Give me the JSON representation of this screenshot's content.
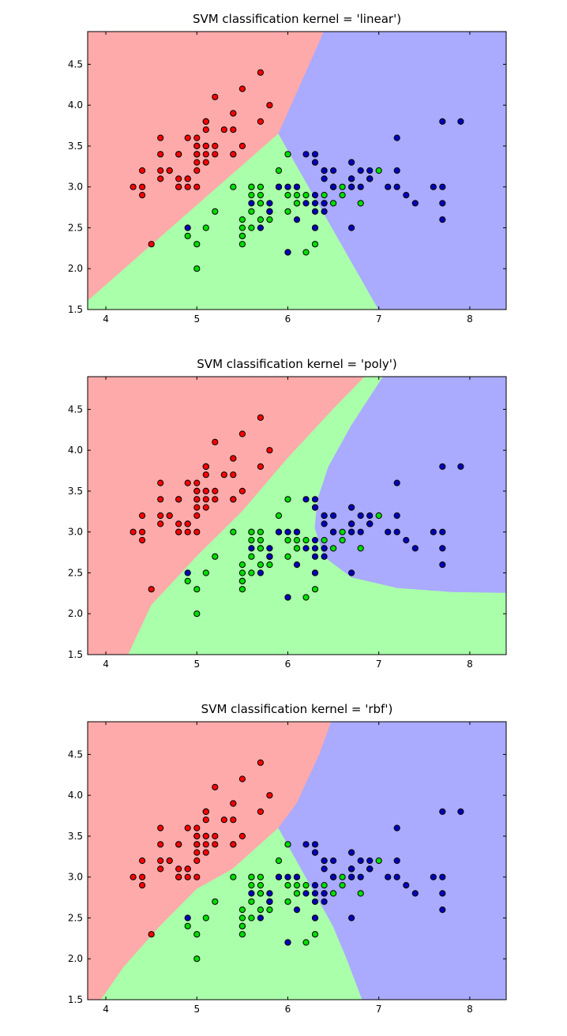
{
  "chart_data": [
    {
      "type": "scatter",
      "title": "SVM classification kernel = 'linear')",
      "xlabel": "",
      "ylabel": "",
      "xlim": [
        3.8,
        8.4
      ],
      "ylim": [
        1.5,
        4.9
      ],
      "xticks": [
        4,
        5,
        6,
        7,
        8
      ],
      "xtick_labels": [
        "4",
        "5",
        "6",
        "7",
        "8"
      ],
      "yticks": [
        1.5,
        2.0,
        2.5,
        3.0,
        3.5,
        4.0,
        4.5
      ],
      "ytick_labels": [
        "1.5",
        "2.0",
        "2.5",
        "3.0",
        "3.5",
        "4.0",
        "4.5"
      ],
      "grid": false,
      "regions": [
        {
          "color": "#ffaaaa",
          "boundary": [
            [
              3.8,
              1.6
            ],
            [
              5.9,
              3.65
            ],
            [
              6.4,
              4.9
            ],
            [
              3.8,
              4.9
            ]
          ]
        },
        {
          "color": "#aaffaa",
          "boundary": [
            [
              3.8,
              1.5
            ],
            [
              3.8,
              1.6
            ],
            [
              5.9,
              3.65
            ],
            [
              7.0,
              1.5
            ]
          ]
        },
        {
          "color": "#aaaaff",
          "boundary": [
            [
              7.0,
              1.5
            ],
            [
              5.9,
              3.65
            ],
            [
              6.4,
              4.9
            ],
            [
              8.4,
              4.9
            ],
            [
              8.4,
              1.5
            ]
          ]
        }
      ]
    },
    {
      "type": "scatter",
      "title": "SVM classification kernel = 'poly')",
      "xlabel": "",
      "ylabel": "",
      "xlim": [
        3.8,
        8.4
      ],
      "ylim": [
        1.5,
        4.9
      ],
      "xticks": [
        4,
        5,
        6,
        7,
        8
      ],
      "xtick_labels": [
        "4",
        "5",
        "6",
        "7",
        "8"
      ],
      "yticks": [
        1.5,
        2.0,
        2.5,
        3.0,
        3.5,
        4.0,
        4.5
      ],
      "ytick_labels": [
        "1.5",
        "2.0",
        "2.5",
        "3.0",
        "3.5",
        "4.0",
        "4.5"
      ],
      "grid": false,
      "regions": [
        {
          "color": "#ffaaaa",
          "boundary": [
            [
              4.25,
              1.5
            ],
            [
              4.5,
              2.1
            ],
            [
              5.0,
              2.7
            ],
            [
              5.5,
              3.25
            ],
            [
              6.0,
              3.9
            ],
            [
              6.5,
              4.5
            ],
            [
              6.85,
              4.9
            ],
            [
              3.8,
              4.9
            ],
            [
              3.8,
              1.5
            ]
          ]
        },
        {
          "color": "#aaffaa",
          "boundary": [
            [
              4.25,
              1.5
            ],
            [
              4.5,
              2.1
            ],
            [
              5.0,
              2.7
            ],
            [
              5.5,
              3.25
            ],
            [
              6.0,
              3.9
            ],
            [
              6.5,
              4.5
            ],
            [
              6.85,
              4.9
            ],
            [
              7.05,
              4.9
            ],
            [
              6.7,
              4.3
            ],
            [
              6.45,
              3.8
            ],
            [
              6.33,
              3.4
            ],
            [
              6.3,
              3.05
            ],
            [
              6.4,
              2.7
            ],
            [
              6.7,
              2.45
            ],
            [
              7.2,
              2.32
            ],
            [
              7.8,
              2.27
            ],
            [
              8.4,
              2.26
            ],
            [
              8.4,
              1.5
            ]
          ]
        },
        {
          "color": "#aaaaff",
          "boundary": [
            [
              7.05,
              4.9
            ],
            [
              6.7,
              4.3
            ],
            [
              6.45,
              3.8
            ],
            [
              6.33,
              3.4
            ],
            [
              6.3,
              3.05
            ],
            [
              6.4,
              2.7
            ],
            [
              6.7,
              2.45
            ],
            [
              7.2,
              2.32
            ],
            [
              7.8,
              2.27
            ],
            [
              8.4,
              2.26
            ],
            [
              8.4,
              4.9
            ]
          ]
        }
      ]
    },
    {
      "type": "scatter",
      "title": "SVM classification kernel = 'rbf')",
      "xlabel": "",
      "ylabel": "",
      "xlim": [
        3.8,
        8.4
      ],
      "ylim": [
        1.5,
        4.9
      ],
      "xticks": [
        4,
        5,
        6,
        7,
        8
      ],
      "xtick_labels": [
        "4",
        "5",
        "6",
        "7",
        "8"
      ],
      "yticks": [
        1.5,
        2.0,
        2.5,
        3.0,
        3.5,
        4.0,
        4.5
      ],
      "ytick_labels": [
        "1.5",
        "2.0",
        "2.5",
        "3.0",
        "3.5",
        "4.0",
        "4.5"
      ],
      "grid": false,
      "regions": [
        {
          "color": "#ffaaaa",
          "boundary": [
            [
              3.95,
              1.5
            ],
            [
              4.2,
              1.9
            ],
            [
              4.6,
              2.4
            ],
            [
              5.0,
              2.85
            ],
            [
              5.4,
              3.1
            ],
            [
              5.9,
              3.6
            ],
            [
              6.1,
              3.9
            ],
            [
              6.35,
              4.5
            ],
            [
              6.48,
              4.9
            ],
            [
              3.8,
              4.9
            ],
            [
              3.8,
              1.5
            ]
          ]
        },
        {
          "color": "#aaffaa",
          "boundary": [
            [
              3.95,
              1.5
            ],
            [
              4.2,
              1.9
            ],
            [
              4.6,
              2.4
            ],
            [
              5.0,
              2.85
            ],
            [
              5.4,
              3.1
            ],
            [
              5.9,
              3.6
            ],
            [
              6.1,
              3.2
            ],
            [
              6.3,
              2.8
            ],
            [
              6.5,
              2.4
            ],
            [
              6.65,
              2.0
            ],
            [
              6.82,
              1.5
            ]
          ]
        },
        {
          "color": "#aaaaff",
          "boundary": [
            [
              6.82,
              1.5
            ],
            [
              6.65,
              2.0
            ],
            [
              6.5,
              2.4
            ],
            [
              6.3,
              2.8
            ],
            [
              6.1,
              3.2
            ],
            [
              5.9,
              3.6
            ],
            [
              6.1,
              3.9
            ],
            [
              6.35,
              4.5
            ],
            [
              6.48,
              4.9
            ],
            [
              8.4,
              4.9
            ],
            [
              8.4,
              1.5
            ]
          ]
        }
      ]
    }
  ],
  "classes": [
    {
      "color": "#ff0000",
      "points": [
        [
          5.1,
          3.5
        ],
        [
          4.9,
          3.0
        ],
        [
          4.7,
          3.2
        ],
        [
          4.6,
          3.1
        ],
        [
          5.0,
          3.6
        ],
        [
          5.4,
          3.9
        ],
        [
          4.6,
          3.4
        ],
        [
          5.0,
          3.4
        ],
        [
          4.4,
          2.9
        ],
        [
          4.9,
          3.1
        ],
        [
          5.4,
          3.7
        ],
        [
          4.8,
          3.4
        ],
        [
          4.8,
          3.0
        ],
        [
          4.3,
          3.0
        ],
        [
          5.8,
          4.0
        ],
        [
          5.7,
          4.4
        ],
        [
          5.4,
          3.9
        ],
        [
          5.1,
          3.5
        ],
        [
          5.7,
          3.8
        ],
        [
          5.1,
          3.8
        ],
        [
          5.4,
          3.4
        ],
        [
          5.1,
          3.7
        ],
        [
          4.6,
          3.6
        ],
        [
          5.1,
          3.3
        ],
        [
          4.8,
          3.4
        ],
        [
          5.0,
          3.0
        ],
        [
          5.0,
          3.4
        ],
        [
          5.2,
          3.5
        ],
        [
          5.2,
          3.4
        ],
        [
          4.7,
          3.2
        ],
        [
          4.8,
          3.1
        ],
        [
          5.4,
          3.4
        ],
        [
          5.2,
          4.1
        ],
        [
          5.5,
          4.2
        ],
        [
          4.9,
          3.1
        ],
        [
          5.0,
          3.2
        ],
        [
          5.5,
          3.5
        ],
        [
          4.9,
          3.6
        ],
        [
          4.4,
          3.0
        ],
        [
          5.1,
          3.4
        ],
        [
          5.0,
          3.5
        ],
        [
          4.5,
          2.3
        ],
        [
          4.4,
          3.2
        ],
        [
          5.0,
          3.5
        ],
        [
          5.1,
          3.8
        ],
        [
          4.8,
          3.0
        ],
        [
          5.1,
          3.8
        ],
        [
          4.6,
          3.2
        ],
        [
          5.3,
          3.7
        ],
        [
          5.0,
          3.3
        ]
      ]
    },
    {
      "color": "#00dd00",
      "points": [
        [
          7.0,
          3.2
        ],
        [
          6.4,
          3.2
        ],
        [
          6.9,
          3.1
        ],
        [
          5.5,
          2.3
        ],
        [
          6.5,
          2.8
        ],
        [
          5.7,
          2.8
        ],
        [
          6.3,
          3.3
        ],
        [
          4.9,
          2.4
        ],
        [
          6.6,
          2.9
        ],
        [
          5.2,
          2.7
        ],
        [
          5.0,
          2.0
        ],
        [
          5.9,
          3.0
        ],
        [
          6.0,
          2.2
        ],
        [
          6.1,
          2.9
        ],
        [
          5.6,
          2.9
        ],
        [
          6.7,
          3.1
        ],
        [
          5.6,
          3.0
        ],
        [
          5.8,
          2.7
        ],
        [
          6.2,
          2.2
        ],
        [
          5.6,
          2.5
        ],
        [
          5.9,
          3.2
        ],
        [
          6.1,
          2.8
        ],
        [
          6.3,
          2.5
        ],
        [
          6.1,
          2.8
        ],
        [
          6.4,
          2.9
        ],
        [
          6.6,
          3.0
        ],
        [
          6.8,
          2.8
        ],
        [
          6.7,
          3.0
        ],
        [
          6.0,
          2.9
        ],
        [
          5.7,
          2.6
        ],
        [
          5.5,
          2.4
        ],
        [
          5.5,
          2.4
        ],
        [
          5.8,
          2.7
        ],
        [
          6.0,
          2.7
        ],
        [
          5.4,
          3.0
        ],
        [
          6.0,
          3.4
        ],
        [
          6.7,
          3.1
        ],
        [
          6.3,
          2.3
        ],
        [
          5.6,
          3.0
        ],
        [
          5.5,
          2.5
        ],
        [
          5.5,
          2.6
        ],
        [
          6.1,
          3.0
        ],
        [
          5.8,
          2.6
        ],
        [
          5.0,
          2.3
        ],
        [
          5.6,
          2.7
        ],
        [
          5.7,
          3.0
        ],
        [
          5.7,
          2.9
        ],
        [
          6.2,
          2.9
        ],
        [
          5.1,
          2.5
        ],
        [
          5.7,
          2.8
        ]
      ]
    },
    {
      "color": "#0000bb",
      "points": [
        [
          6.3,
          3.3
        ],
        [
          5.8,
          2.7
        ],
        [
          7.1,
          3.0
        ],
        [
          6.3,
          2.9
        ],
        [
          6.5,
          3.0
        ],
        [
          7.6,
          3.0
        ],
        [
          4.9,
          2.5
        ],
        [
          7.3,
          2.9
        ],
        [
          6.7,
          2.5
        ],
        [
          7.2,
          3.6
        ],
        [
          6.5,
          3.2
        ],
        [
          6.4,
          2.7
        ],
        [
          6.8,
          3.0
        ],
        [
          5.7,
          2.5
        ],
        [
          5.8,
          2.8
        ],
        [
          6.4,
          3.2
        ],
        [
          6.5,
          3.0
        ],
        [
          7.7,
          3.8
        ],
        [
          7.7,
          2.6
        ],
        [
          6.0,
          2.2
        ],
        [
          6.9,
          3.2
        ],
        [
          5.6,
          2.8
        ],
        [
          7.7,
          2.8
        ],
        [
          6.3,
          2.7
        ],
        [
          6.7,
          3.3
        ],
        [
          7.2,
          3.2
        ],
        [
          6.2,
          2.8
        ],
        [
          6.1,
          3.0
        ],
        [
          6.4,
          2.8
        ],
        [
          7.2,
          3.0
        ],
        [
          7.4,
          2.8
        ],
        [
          7.9,
          3.8
        ],
        [
          6.4,
          2.8
        ],
        [
          6.3,
          2.8
        ],
        [
          6.1,
          2.6
        ],
        [
          7.7,
          3.0
        ],
        [
          6.3,
          3.4
        ],
        [
          6.4,
          3.1
        ],
        [
          6.0,
          3.0
        ],
        [
          6.9,
          3.1
        ],
        [
          6.7,
          3.1
        ],
        [
          6.9,
          3.1
        ],
        [
          5.8,
          2.7
        ],
        [
          6.8,
          3.2
        ],
        [
          6.7,
          3.3
        ],
        [
          6.7,
          3.0
        ],
        [
          6.3,
          2.5
        ],
        [
          6.5,
          3.0
        ],
        [
          6.2,
          3.4
        ],
        [
          5.9,
          3.0
        ]
      ]
    }
  ]
}
